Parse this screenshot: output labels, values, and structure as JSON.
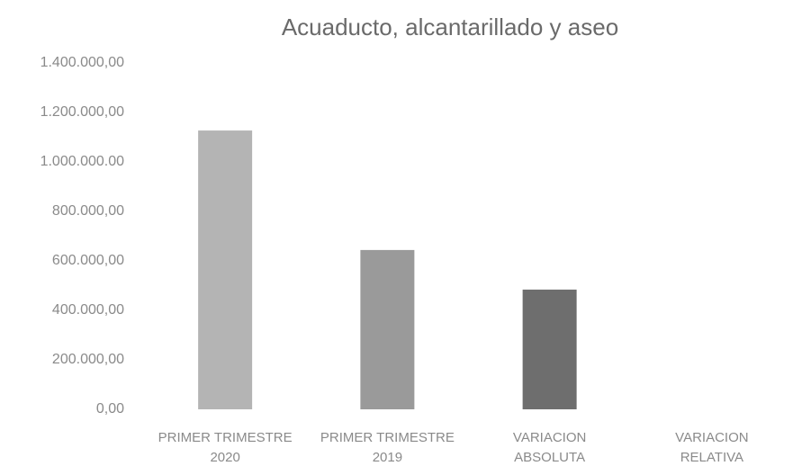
{
  "chart_data": {
    "type": "bar",
    "title": "Acuaducto, alcantarillado y aseo",
    "categories": [
      "PRIMER TRIMESTRE 2020",
      "PRIMER TRIMESTRE 2019",
      "VARIACION ABSOLUTA",
      "VARIACION RELATIVA"
    ],
    "values": [
      1127000,
      644000,
      484000,
      0
    ],
    "colors": [
      "#b4b4b4",
      "#9a9a9a",
      "#6e6e6e",
      "#cccccc"
    ],
    "ylim": [
      0,
      1400000
    ],
    "yticks": [
      {
        "value": 0,
        "label": "0,00"
      },
      {
        "value": 200000,
        "label": "200.000,00"
      },
      {
        "value": 400000,
        "label": "400.000,00"
      },
      {
        "value": 600000,
        "label": "600.000,00"
      },
      {
        "value": 800000,
        "label": "800.000,00"
      },
      {
        "value": 1000000,
        "label": "1.000.000.00"
      },
      {
        "value": 1200000,
        "label": "1.200.000,00"
      },
      {
        "value": 1400000,
        "label": "1.400.000,00"
      }
    ],
    "grid": false
  }
}
